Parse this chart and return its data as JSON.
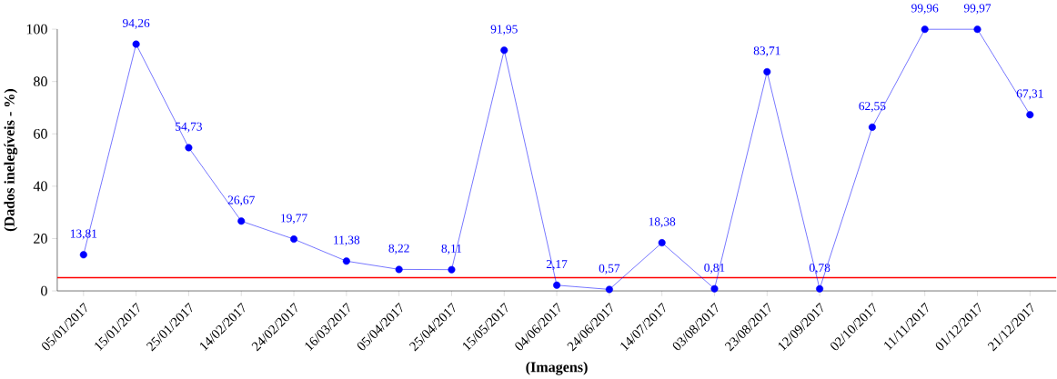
{
  "chart_data": {
    "type": "line",
    "xlabel": "(Imagens)",
    "ylabel": "(Dados inelegíveis - %)",
    "categories": [
      "05/01/2017",
      "15/01/2017",
      "25/01/2017",
      "14/02/2017",
      "24/02/2017",
      "16/03/2017",
      "05/04/2017",
      "25/04/2017",
      "15/05/2017",
      "04/06/2017",
      "24/06/2017",
      "14/07/2017",
      "03/08/2017",
      "23/08/2017",
      "12/09/2017",
      "02/10/2017",
      "11/11/2017",
      "01/12/2017",
      "21/12/2017"
    ],
    "series": [
      {
        "color": "#0000ff",
        "values": [
          13.81,
          94.26,
          54.73,
          26.67,
          19.77,
          11.38,
          8.22,
          8.11,
          91.95,
          2.17,
          0.57,
          18.38,
          0.81,
          83.71,
          0.78,
          62.55,
          99.96,
          99.97,
          67.31
        ],
        "value_labels": [
          "13,81",
          "94,26",
          "54,73",
          "26,67",
          "19,77",
          "11,38",
          "8,22",
          "8,11",
          "91,95",
          "2,17",
          "0,57",
          "18,38",
          "0,81",
          "83,71",
          "0,78",
          "62,55",
          "99,96",
          "99,97",
          "67,31"
        ]
      }
    ],
    "ylim": [
      0,
      100
    ],
    "yticks": [
      0,
      20,
      40,
      60,
      80,
      100
    ],
    "ref_lines": [
      {
        "axis": "y",
        "value": 5,
        "color": "#ff0000"
      }
    ],
    "marker": "circle",
    "line_style": "solid",
    "grid": false
  }
}
